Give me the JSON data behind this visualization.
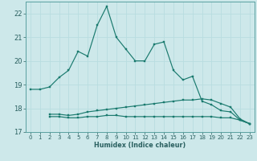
{
  "xlabel": "Humidex (Indice chaleur)",
  "main_x": [
    0,
    1,
    2,
    3,
    4,
    5,
    6,
    7,
    8,
    9,
    10,
    11,
    12,
    13,
    14,
    15,
    16,
    17,
    18,
    19,
    20,
    21,
    22,
    23
  ],
  "main_y": [
    18.8,
    18.8,
    18.9,
    19.3,
    19.6,
    20.4,
    20.2,
    21.5,
    22.3,
    21.0,
    20.5,
    20.0,
    20.0,
    20.7,
    20.8,
    19.6,
    19.2,
    19.35,
    18.3,
    18.15,
    17.9,
    17.85,
    17.5,
    17.35
  ],
  "mid_x": [
    2,
    3,
    4,
    5,
    6,
    7,
    8,
    9,
    10,
    11,
    12,
    13,
    14,
    15,
    16,
    17,
    18,
    19,
    20,
    21,
    22,
    23
  ],
  "mid_y": [
    17.75,
    17.75,
    17.7,
    17.75,
    17.85,
    17.9,
    17.95,
    18.0,
    18.05,
    18.1,
    18.15,
    18.2,
    18.25,
    18.3,
    18.35,
    18.35,
    18.4,
    18.35,
    18.2,
    18.05,
    17.55,
    17.35
  ],
  "bot_x": [
    2,
    3,
    4,
    5,
    6,
    7,
    8,
    9,
    10,
    11,
    12,
    13,
    14,
    15,
    16,
    17,
    18,
    19,
    20,
    21,
    22,
    23
  ],
  "bot_y": [
    17.65,
    17.65,
    17.6,
    17.6,
    17.65,
    17.65,
    17.7,
    17.7,
    17.65,
    17.65,
    17.65,
    17.65,
    17.65,
    17.65,
    17.65,
    17.65,
    17.65,
    17.65,
    17.6,
    17.6,
    17.5,
    17.35
  ],
  "ylim": [
    17.0,
    22.5
  ],
  "xlim": [
    -0.5,
    23.5
  ],
  "yticks": [
    17,
    18,
    19,
    20,
    21,
    22
  ],
  "xticks": [
    0,
    1,
    2,
    3,
    4,
    5,
    6,
    7,
    8,
    9,
    10,
    11,
    12,
    13,
    14,
    15,
    16,
    17,
    18,
    19,
    20,
    21,
    22,
    23
  ],
  "bg_color": "#cde8ea",
  "line_color": "#1a7a6e",
  "grid_color": "#b8dde0",
  "spine_color": "#5aa0a0",
  "font_color": "#2a6060"
}
